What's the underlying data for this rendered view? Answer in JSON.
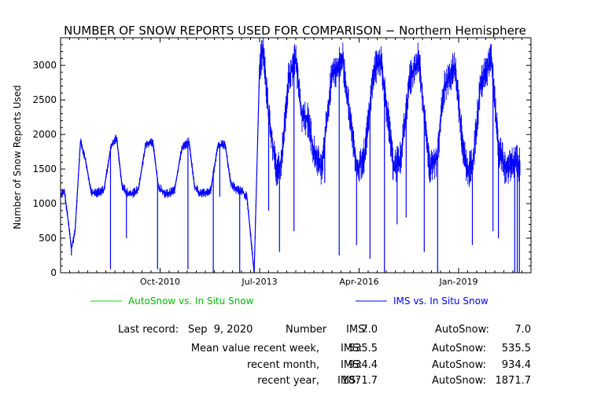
{
  "chart_data": {
    "type": "line",
    "title": "NUMBER OF SNOW REPORTS USED FOR COMPARISON − Northern Hemisphere",
    "xlabel": "",
    "ylabel": "Number of Snow Reports Used",
    "ylim": [
      0,
      3400
    ],
    "yticks": [
      0,
      500,
      1000,
      1500,
      2000,
      2500,
      3000
    ],
    "xlim": [
      2008.0,
      2021.0
    ],
    "xticks": [
      {
        "label": "Oct-2010",
        "value": 2010.75
      },
      {
        "label": "Jul-2013",
        "value": 2013.5
      },
      {
        "label": "Apr-2016",
        "value": 2016.25
      },
      {
        "label": "Jan-2019",
        "value": 2019.0
      }
    ],
    "grid": false,
    "legend_position": "bottom",
    "series": [
      {
        "name": "AutoSnow vs. In Situ Snow",
        "color": "#00dd00",
        "x": [],
        "y": []
      },
      {
        "name": "IMS vs. In Situ Snow",
        "color": "#0000ff",
        "x": [
          2008.0,
          2008.1,
          2008.2,
          2008.3,
          2008.4,
          2008.55,
          2008.7,
          2008.85,
          2009.0,
          2009.2,
          2009.4,
          2009.55,
          2009.7,
          2009.85,
          2010.0,
          2010.15,
          2010.35,
          2010.55,
          2010.7,
          2010.85,
          2011.0,
          2011.15,
          2011.35,
          2011.55,
          2011.7,
          2011.85,
          2012.0,
          2012.15,
          2012.35,
          2012.55,
          2012.7,
          2012.85,
          2013.0,
          2013.15,
          2013.35,
          2013.5,
          2013.6,
          2013.75,
          2013.95,
          2014.1,
          2014.3,
          2014.5,
          2014.65,
          2014.85,
          2015.0,
          2015.2,
          2015.5,
          2015.8,
          2016.0,
          2016.2,
          2016.4,
          2016.65,
          2016.85,
          2017.1,
          2017.2,
          2017.4,
          2017.65,
          2017.9,
          2018.1,
          2018.2,
          2018.4,
          2018.6,
          2018.9,
          2019.1,
          2019.25,
          2019.4,
          2019.6,
          2019.9,
          2020.1,
          2020.3,
          2020.45,
          2020.6,
          2020.7
        ],
        "y": [
          1100,
          1200,
          800,
          350,
          600,
          1900,
          1600,
          1150,
          1150,
          1200,
          1850,
          1950,
          1250,
          1150,
          1150,
          1200,
          1850,
          1900,
          1250,
          1150,
          1150,
          1200,
          1800,
          1900,
          1250,
          1150,
          1150,
          1200,
          1850,
          1850,
          1300,
          1200,
          1180,
          1100,
          0,
          3000,
          3250,
          2300,
          1500,
          1600,
          2800,
          3100,
          2300,
          2200,
          1750,
          1500,
          2850,
          3100,
          2200,
          1500,
          1700,
          2900,
          3100,
          2000,
          1500,
          1650,
          2800,
          3100,
          2000,
          1500,
          1650,
          2700,
          3000,
          1900,
          1450,
          1600,
          2700,
          3100,
          1800,
          1500,
          1550,
          1600,
          1550
        ]
      }
    ],
    "spikes": [
      {
        "x": 2008.3,
        "y": 250
      },
      {
        "x": 2009.38,
        "y": 50
      },
      {
        "x": 2009.82,
        "y": 500
      },
      {
        "x": 2010.68,
        "y": 50
      },
      {
        "x": 2011.52,
        "y": 50
      },
      {
        "x": 2012.22,
        "y": 0
      },
      {
        "x": 2012.4,
        "y": 1100
      },
      {
        "x": 2012.95,
        "y": 0
      },
      {
        "x": 2013.75,
        "y": 900
      },
      {
        "x": 2014.05,
        "y": 300
      },
      {
        "x": 2014.45,
        "y": 600
      },
      {
        "x": 2015.3,
        "y": 1300
      },
      {
        "x": 2015.7,
        "y": 250
      },
      {
        "x": 2016.18,
        "y": 400
      },
      {
        "x": 2016.55,
        "y": 200
      },
      {
        "x": 2016.95,
        "y": 0
      },
      {
        "x": 2017.3,
        "y": 700
      },
      {
        "x": 2017.55,
        "y": 800
      },
      {
        "x": 2018.05,
        "y": 300
      },
      {
        "x": 2018.42,
        "y": 0
      },
      {
        "x": 2019.38,
        "y": 400
      },
      {
        "x": 2019.95,
        "y": 600
      },
      {
        "x": 2020.1,
        "y": 500
      },
      {
        "x": 2020.55,
        "y": 0
      },
      {
        "x": 2020.62,
        "y": 0
      },
      {
        "x": 2020.68,
        "y": 0
      }
    ]
  },
  "legend": {
    "autosnow": {
      "label": "AutoSnow vs. In Situ Snow",
      "color": "#00dd00"
    },
    "ims": {
      "label": "IMS vs. In Situ Snow",
      "color": "#0000ff"
    }
  },
  "stats": {
    "last_record_label": "Last record:",
    "last_record_value": "Sep  9, 2020",
    "number_label": "Number",
    "ims_label": "IMS:",
    "autosnow_label": "AutoSnow:",
    "number_ims": "7.0",
    "number_autosnow": "7.0",
    "mean_week_label": "Mean value recent week,",
    "week_ims": "535.5",
    "week_autosnow": "535.5",
    "month_label": "recent month,",
    "month_ims": "934.4",
    "month_autosnow": "934.4",
    "year_label": "recent year,",
    "year_ims": "1871.7",
    "year_autosnow": "1871.7"
  }
}
